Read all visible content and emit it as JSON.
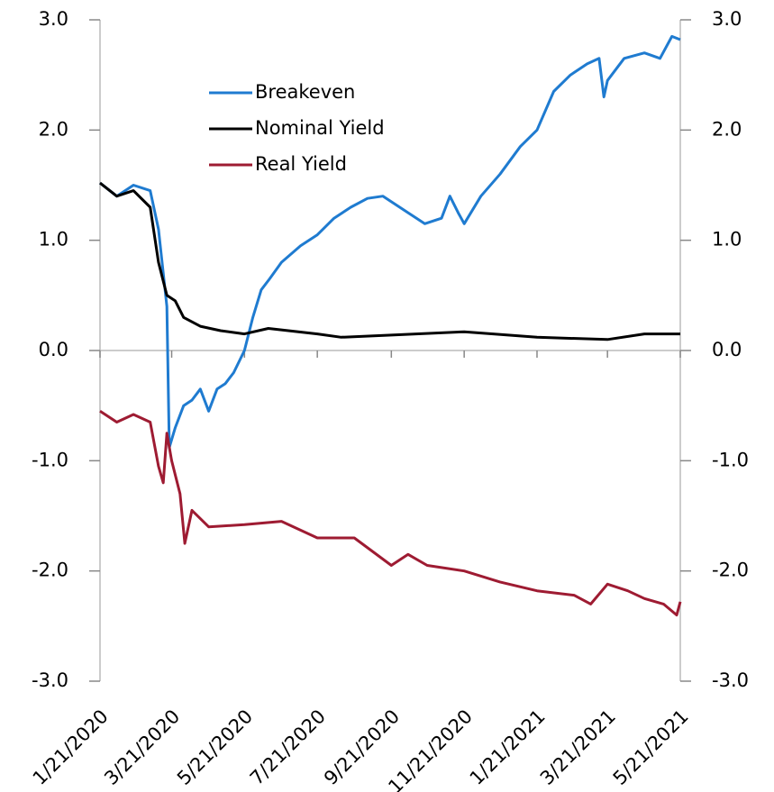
{
  "chart_data": {
    "type": "line",
    "xlim": [
      "1/21/2020",
      "5/21/2021"
    ],
    "xticks": [
      "1/21/2020",
      "3/21/2020",
      "5/21/2020",
      "7/21/2020",
      "9/21/2020",
      "11/21/2020",
      "1/21/2021",
      "3/21/2021",
      "5/21/2021"
    ],
    "ylim": [
      -3,
      3
    ],
    "yticks": [
      {
        "value": 3,
        "label": "3.0"
      },
      {
        "value": 2,
        "label": "2.0"
      },
      {
        "value": 1,
        "label": "1.0"
      },
      {
        "value": 0,
        "label": "0.0"
      },
      {
        "value": -1,
        "label": "-1.0"
      },
      {
        "value": -2,
        "label": "-2.0"
      },
      {
        "value": -3,
        "label": "-3.0"
      }
    ],
    "y2lim": [
      -3,
      3
    ],
    "y2ticks": [
      {
        "value": 3,
        "label": "3.0"
      },
      {
        "value": 2,
        "label": "2.0"
      },
      {
        "value": 1,
        "label": "1.0"
      },
      {
        "value": 0,
        "label": "0.0"
      },
      {
        "value": -1,
        "label": "-1.0"
      },
      {
        "value": -2,
        "label": "-2.0"
      },
      {
        "value": -3,
        "label": "-3.0"
      }
    ],
    "series": [
      {
        "name": "Breakeven",
        "color": "#1f7bd0",
        "x": [
          "1/21/2020",
          "2/4/2020",
          "2/18/2020",
          "3/3/2020",
          "3/10/2020",
          "3/17/2020",
          "3/19/2020",
          "3/24/2020",
          "3/31/2020",
          "4/7/2020",
          "4/14/2020",
          "4/21/2020",
          "4/28/2020",
          "5/5/2020",
          "5/12/2020",
          "5/21/2020",
          "5/28/2020",
          "6/4/2020",
          "6/11/2020",
          "6/21/2020",
          "7/7/2020",
          "7/21/2020",
          "8/4/2020",
          "8/18/2020",
          "9/1/2020",
          "9/14/2020",
          "9/21/2020",
          "10/5/2020",
          "10/19/2020",
          "11/2/2020",
          "11/9/2020",
          "11/16/2020",
          "11/21/2020",
          "12/5/2020",
          "12/21/2020",
          "1/7/2021",
          "1/21/2021",
          "2/4/2021",
          "2/18/2021",
          "3/4/2021",
          "3/14/2021",
          "3/18/2021",
          "3/21/2021",
          "4/4/2021",
          "4/21/2021",
          "5/4/2021",
          "5/14/2021",
          "5/21/2021"
        ],
        "values": [
          1.52,
          1.4,
          1.5,
          1.45,
          1.1,
          0.4,
          -0.88,
          -0.7,
          -0.5,
          -0.45,
          -0.35,
          -0.55,
          -0.35,
          -0.3,
          -0.2,
          0.0,
          0.3,
          0.55,
          0.65,
          0.8,
          0.95,
          1.05,
          1.2,
          1.3,
          1.38,
          1.4,
          1.35,
          1.25,
          1.15,
          1.2,
          1.4,
          1.25,
          1.15,
          1.4,
          1.6,
          1.85,
          2.0,
          2.35,
          2.5,
          2.6,
          2.65,
          2.3,
          2.45,
          2.65,
          2.7,
          2.65,
          2.85,
          2.82
        ]
      },
      {
        "name": "Nominal Yield",
        "color": "#000000",
        "x": [
          "1/21/2020",
          "2/4/2020",
          "2/18/2020",
          "3/3/2020",
          "3/10/2020",
          "3/17/2020",
          "3/24/2020",
          "3/31/2020",
          "4/14/2020",
          "5/1/2020",
          "5/21/2020",
          "6/10/2020",
          "7/21/2020",
          "8/10/2020",
          "9/21/2020",
          "11/21/2020",
          "1/21/2021",
          "3/21/2021",
          "4/21/2021",
          "5/21/2021"
        ],
        "values": [
          1.52,
          1.4,
          1.45,
          1.3,
          0.8,
          0.5,
          0.45,
          0.3,
          0.22,
          0.18,
          0.15,
          0.2,
          0.15,
          0.12,
          0.14,
          0.17,
          0.12,
          0.1,
          0.15,
          0.15
        ]
      },
      {
        "name": "Real Yield",
        "color": "#9e1b32",
        "x": [
          "1/21/2020",
          "2/4/2020",
          "2/18/2020",
          "3/3/2020",
          "3/10/2020",
          "3/14/2020",
          "3/17/2020",
          "3/21/2020",
          "3/28/2020",
          "4/1/2020",
          "4/7/2020",
          "4/21/2020",
          "5/21/2020",
          "6/21/2020",
          "7/21/2020",
          "8/21/2020",
          "9/21/2020",
          "10/5/2020",
          "10/21/2020",
          "11/21/2020",
          "12/21/2020",
          "1/21/2021",
          "2/21/2021",
          "3/7/2021",
          "3/21/2021",
          "4/7/2021",
          "4/21/2021",
          "5/7/2021",
          "5/18/2021",
          "5/21/2021"
        ],
        "values": [
          -0.55,
          -0.65,
          -0.58,
          -0.65,
          -1.05,
          -1.2,
          -0.75,
          -1.0,
          -1.3,
          -1.75,
          -1.45,
          -1.6,
          -1.58,
          -1.55,
          -1.7,
          -1.7,
          -1.95,
          -1.85,
          -1.95,
          -2.0,
          -2.1,
          -2.18,
          -2.22,
          -2.3,
          -2.12,
          -2.18,
          -2.25,
          -2.3,
          -2.4,
          -2.28
        ]
      }
    ]
  }
}
